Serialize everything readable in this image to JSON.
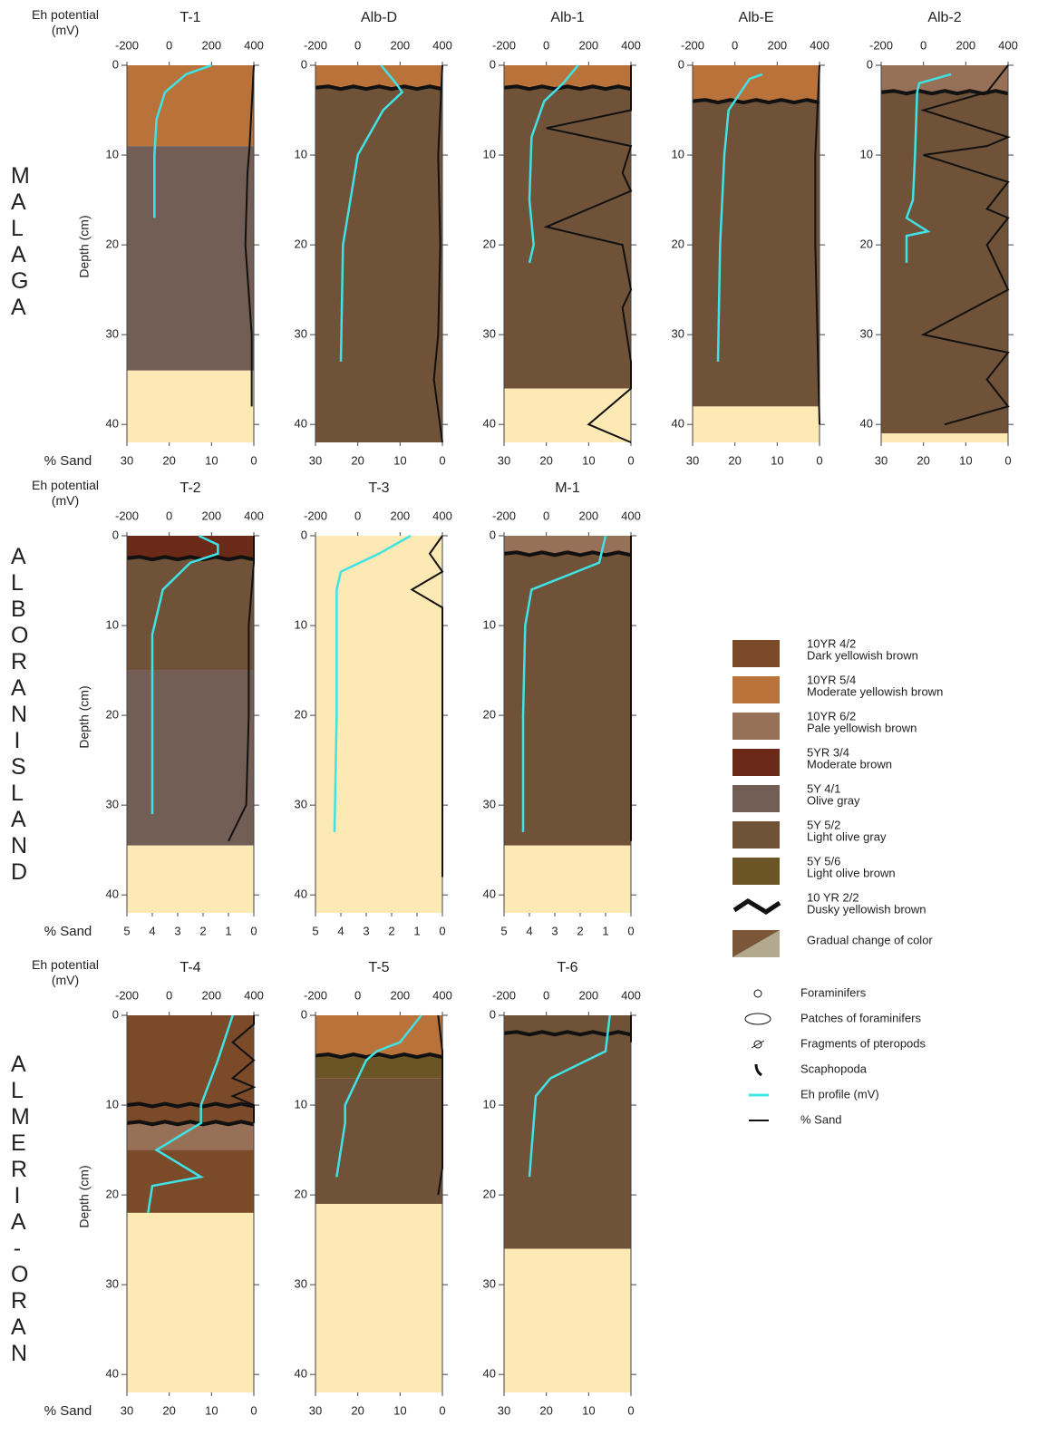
{
  "eh_color": "#3fe3e6",
  "sand_color": "#111111",
  "regions": [
    {
      "label": "MALAGA",
      "eh_label": "Eh potential (mV)",
      "depth_label": "Depth (cm)",
      "sand_label": "% Sand",
      "eh_lim": [
        -200,
        400
      ],
      "eh_ticks": [
        -200,
        0,
        200,
        400
      ],
      "sand_lim": [
        30,
        0
      ],
      "sand_ticks": [
        30,
        20,
        10,
        0
      ],
      "depth_lim": [
        0,
        42
      ],
      "depth_ticks": [
        0,
        10,
        20,
        30,
        40
      ],
      "cores": [
        {
          "name": "T-1",
          "layers": [
            {
              "top": 0,
              "bottom": 9,
              "color": "#b9733a"
            },
            {
              "top": 9,
              "bottom": 34,
              "color": "#735e55"
            },
            {
              "top": 34,
              "bottom": 42,
              "color": "#fde9b4"
            }
          ],
          "dusky": [],
          "eh": {
            "depth": [
              0,
              1,
              3,
              6,
              10,
              14,
              17
            ],
            "mv": [
              200,
              80,
              -20,
              -60,
              -70,
              -70,
              -70
            ]
          },
          "sand": {
            "depth": [
              0,
              9,
              12,
              20,
              30,
              38
            ],
            "pct": [
              0,
              1,
              1.5,
              2,
              0.5,
              0.5
            ]
          }
        },
        {
          "name": "Alb-D",
          "layers": [
            {
              "top": 0,
              "bottom": 2.5,
              "color": "#b9733a"
            },
            {
              "top": 2.5,
              "bottom": 42,
              "color": "#6f5238"
            }
          ],
          "dusky": [
            2.5
          ],
          "eh": {
            "depth": [
              0,
              2,
              3,
              5,
              10,
              20,
              33
            ],
            "mv": [
              110,
              180,
              210,
              120,
              0,
              -70,
              -80
            ]
          },
          "sand": {
            "depth": [
              0,
              10,
              20,
              30,
              35,
              42
            ],
            "pct": [
              0,
              1,
              0.5,
              1,
              2,
              0
            ]
          }
        },
        {
          "name": "Alb-1",
          "layers": [
            {
              "top": 0,
              "bottom": 2.5,
              "color": "#b9733a"
            },
            {
              "top": 2.5,
              "bottom": 36,
              "color": "#6f5238"
            },
            {
              "top": 36,
              "bottom": 42,
              "color": "#fde9b4"
            }
          ],
          "dusky": [
            2.5
          ],
          "eh": {
            "depth": [
              0,
              2,
              4,
              8,
              15,
              20,
              22
            ],
            "mv": [
              150,
              80,
              -10,
              -70,
              -80,
              -60,
              -80
            ]
          },
          "sand": {
            "depth": [
              0,
              3,
              5,
              7,
              9,
              12,
              14,
              18,
              20,
              25,
              27,
              33,
              36,
              40,
              42
            ],
            "pct": [
              0,
              0,
              0,
              20,
              0,
              2,
              0,
              20,
              2,
              0,
              2,
              0,
              0,
              10,
              0
            ]
          }
        },
        {
          "name": "Alb-E",
          "layers": [
            {
              "top": 0,
              "bottom": 4,
              "color": "#b9733a"
            },
            {
              "top": 4,
              "bottom": 38,
              "color": "#6f5238"
            },
            {
              "top": 38,
              "bottom": 42,
              "color": "#fde9b4"
            }
          ],
          "dusky": [
            4
          ],
          "eh": {
            "depth": [
              1,
              1.5,
              5,
              10,
              20,
              33
            ],
            "mv": [
              130,
              70,
              -30,
              -50,
              -70,
              -80
            ]
          },
          "sand": {
            "depth": [
              0,
              10,
              20,
              30,
              40
            ],
            "pct": [
              0,
              1,
              1,
              0.5,
              0
            ]
          }
        },
        {
          "name": "Alb-2",
          "layers": [
            {
              "top": 0,
              "bottom": 3,
              "color": "#977058"
            },
            {
              "top": 3,
              "bottom": 41,
              "color": "#6f5238"
            },
            {
              "top": 41,
              "bottom": 42,
              "color": "#fde9b4"
            }
          ],
          "dusky": [
            3
          ],
          "eh": {
            "depth": [
              1,
              2,
              3,
              10,
              15,
              17,
              18.5,
              19,
              22
            ],
            "mv": [
              130,
              -20,
              -30,
              -40,
              -50,
              -80,
              20,
              -80,
              -80
            ]
          },
          "sand": {
            "depth": [
              0,
              3,
              5,
              8,
              9,
              10,
              13,
              16,
              17,
              20,
              25,
              30,
              32,
              35,
              38,
              40
            ],
            "pct": [
              0,
              5,
              20,
              0,
              5,
              20,
              0,
              5,
              0,
              5,
              0,
              20,
              0,
              5,
              0,
              15
            ]
          }
        }
      ]
    },
    {
      "label": "ALBORAN ISLAND",
      "eh_label": "Eh potential (mV)",
      "depth_label": "Depth (cm)",
      "sand_label": "% Sand",
      "eh_lim": [
        -200,
        400
      ],
      "eh_ticks": [
        -200,
        0,
        200,
        400
      ],
      "sand_lim": [
        5,
        0
      ],
      "sand_ticks": [
        5,
        4,
        3,
        2,
        1,
        0
      ],
      "depth_lim": [
        0,
        42
      ],
      "depth_ticks": [
        0,
        10,
        20,
        30,
        40
      ],
      "cores": [
        {
          "name": "T-2",
          "layers": [
            {
              "top": 0,
              "bottom": 2.5,
              "color": "#6b2a17"
            },
            {
              "top": 2.5,
              "bottom": 15,
              "color": "#6f5238"
            },
            {
              "top": 15,
              "bottom": 34.5,
              "color": "#735e55"
            },
            {
              "top": 34.5,
              "bottom": 42,
              "color": "#fde9b4"
            }
          ],
          "dusky": [
            2.5
          ],
          "eh": {
            "depth": [
              0,
              1,
              2,
              3,
              6,
              11,
              20,
              31
            ],
            "mv": [
              140,
              230,
              230,
              100,
              -30,
              -80,
              -80,
              -80
            ]
          },
          "sand": {
            "depth": [
              0,
              3,
              10,
              20,
              30,
              34
            ],
            "pct": [
              0,
              0,
              0.2,
              0.2,
              0.3,
              1
            ]
          }
        },
        {
          "name": "T-3",
          "layers": [
            {
              "top": 0,
              "bottom": 42,
              "color": "#fde9b4"
            }
          ],
          "dusky": [],
          "eh": {
            "depth": [
              0,
              2,
              4,
              6,
              10,
              20,
              33
            ],
            "mv": [
              250,
              100,
              -80,
              -100,
              -100,
              -100,
              -110
            ]
          },
          "sand": {
            "depth": [
              0,
              2,
              4,
              6,
              8,
              38
            ],
            "pct": [
              0,
              0.5,
              0,
              1.2,
              0,
              0
            ]
          }
        },
        {
          "name": "M-1",
          "layers": [
            {
              "top": 0,
              "bottom": 2,
              "color": "#977058"
            },
            {
              "top": 2,
              "bottom": 34.5,
              "color": "#6f5238"
            },
            {
              "top": 34.5,
              "bottom": 42,
              "color": "#fde9b4"
            }
          ],
          "dusky": [
            2
          ],
          "eh": {
            "depth": [
              0,
              3,
              6,
              10,
              20,
              33
            ],
            "mv": [
              280,
              250,
              -70,
              -100,
              -110,
              -110
            ]
          },
          "sand": {
            "depth": [
              0,
              34
            ],
            "pct": [
              0,
              0
            ]
          }
        }
      ]
    },
    {
      "label": "ALMERIA-ORAN",
      "eh_label": "Eh potential (mV)",
      "depth_label": "Depth (cm)",
      "sand_label": "% Sand",
      "eh_lim": [
        -200,
        400
      ],
      "eh_ticks": [
        -200,
        0,
        200,
        400
      ],
      "sand_lim": [
        30,
        0
      ],
      "sand_ticks": [
        30,
        20,
        10,
        0
      ],
      "depth_lim": [
        0,
        42
      ],
      "depth_ticks": [
        0,
        10,
        20,
        30,
        40
      ],
      "cores": [
        {
          "name": "T-4",
          "layers": [
            {
              "top": 0,
              "bottom": 12,
              "color": "#7b4a28"
            },
            {
              "top": 12,
              "bottom": 15,
              "color": "#977058"
            },
            {
              "top": 15,
              "bottom": 22,
              "color": "#7b4a28"
            },
            {
              "top": 22,
              "bottom": 42,
              "color": "#fde9b4"
            }
          ],
          "dusky": [
            10,
            12
          ],
          "eh": {
            "depth": [
              0,
              5,
              10,
              12,
              15,
              18,
              19,
              22
            ],
            "mv": [
              300,
              230,
              150,
              150,
              -60,
              150,
              -80,
              -100
            ]
          },
          "sand": {
            "depth": [
              0,
              1,
              3,
              5,
              7,
              8,
              9,
              10,
              12
            ],
            "pct": [
              0,
              0,
              5,
              0,
              5,
              0,
              5,
              0,
              0
            ]
          }
        },
        {
          "name": "T-5",
          "layers": [
            {
              "top": 0,
              "bottom": 4.5,
              "color": "#b9733a"
            },
            {
              "top": 4.5,
              "bottom": 7,
              "color": "#6b5426"
            },
            {
              "top": 7,
              "bottom": 21,
              "color": "#6f5238"
            },
            {
              "top": 21,
              "bottom": 42,
              "color": "#fde9b4"
            }
          ],
          "dusky": [
            4.5
          ],
          "eh": {
            "depth": [
              0,
              3,
              4,
              5,
              10,
              12,
              18
            ],
            "mv": [
              300,
              200,
              90,
              40,
              -60,
              -60,
              -100
            ]
          },
          "sand": {
            "depth": [
              0,
              4,
              6,
              17,
              20
            ],
            "pct": [
              1,
              0,
              0,
              0,
              1
            ]
          }
        },
        {
          "name": "T-6",
          "layers": [
            {
              "top": 0,
              "bottom": 26,
              "color": "#6f5238"
            },
            {
              "top": 26,
              "bottom": 42,
              "color": "#fde9b4"
            }
          ],
          "dusky": [
            2
          ],
          "eh": {
            "depth": [
              0,
              4,
              7,
              9,
              15,
              18
            ],
            "mv": [
              300,
              280,
              20,
              -50,
              -70,
              -80
            ]
          },
          "sand": {
            "depth": [
              0,
              3
            ],
            "pct": [
              0,
              0
            ]
          }
        }
      ]
    }
  ],
  "legend": [
    {
      "code": "10YR 4/2",
      "name": "Dark yellowish brown",
      "color": "#7b4a28"
    },
    {
      "code": "10YR 5/4",
      "name": "Moderate yellowish brown",
      "color": "#b9733a"
    },
    {
      "code": "10YR 6/2",
      "name": "Pale yellowish brown",
      "color": "#977058"
    },
    {
      "code": "5YR 3/4",
      "name": "Moderate brown",
      "color": "#6b2a17"
    },
    {
      "code": "5Y 4/1",
      "name": "Olive gray",
      "color": "#735e55"
    },
    {
      "code": "5Y 5/2",
      "name": "Light olive gray",
      "color": "#6f5238"
    },
    {
      "code": "5Y 5/6",
      "name": "Light olive brown",
      "color": "#6b5426"
    },
    {
      "code": "10 YR 2/2",
      "name": "Dusky yellowish brown"
    },
    {
      "name": "Gradual change of color"
    }
  ],
  "symbols": [
    "Foraminifers",
    "Patches of foraminifers",
    "Fragments of pteropods",
    "Scaphopoda",
    "Eh profile (mV)",
    "% Sand"
  ]
}
